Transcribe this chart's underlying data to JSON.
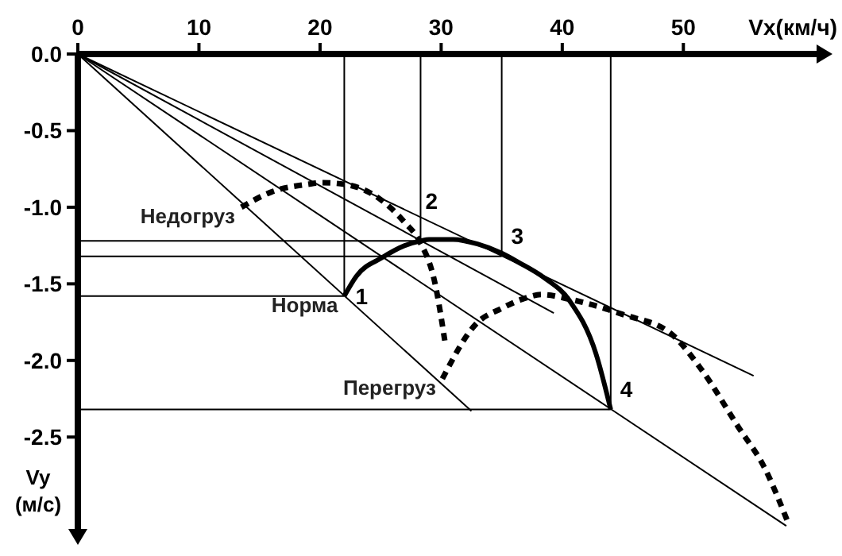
{
  "chart_data": {
    "type": "line",
    "xlabel": "Vx(км/ч)",
    "ylabel": "Vy (м/с)",
    "xlim": [
      0,
      61
    ],
    "ylim": [
      -3.1,
      0
    ],
    "xticks": [
      0,
      10,
      20,
      30,
      40,
      50
    ],
    "yticks": [
      {
        "value": 0,
        "label": "0.0"
      },
      {
        "value": -0.5,
        "label": "-0.5"
      },
      {
        "value": -1,
        "label": "-1.0"
      },
      {
        "value": -1.5,
        "label": "-1.5"
      },
      {
        "value": -2,
        "label": "-2.0"
      },
      {
        "value": -2.5,
        "label": "-2.5"
      }
    ],
    "grid": false,
    "marker": "none",
    "series": [
      {
        "name": "Норма",
        "color": "#000000",
        "line_style": "solid",
        "x": [
          22,
          23,
          25.1,
          27,
          28.3,
          29,
          31,
          33,
          35,
          36.4,
          38.5,
          40.6,
          42.8,
          44
        ],
        "values": [
          -1.58,
          -1.45,
          -1.33,
          -1.25,
          -1.22,
          -1.21,
          -1.21,
          -1.24,
          -1.3,
          -1.36,
          -1.46,
          -1.61,
          -1.96,
          -2.32
        ]
      },
      {
        "name": "Недогруз",
        "color": "#000000",
        "line_style": "dashed",
        "x": [
          13.5,
          16,
          19,
          20.2,
          22,
          25,
          27,
          28.2,
          29.5,
          30.3
        ],
        "values": [
          -1.0,
          -0.9,
          -0.85,
          -0.84,
          -0.85,
          -0.95,
          -1.1,
          -1.22,
          -1.5,
          -1.87
        ]
      },
      {
        "name": "Перегруз",
        "color": "#000000",
        "line_style": "dashed",
        "x": [
          30.1,
          32.9,
          35,
          36.7,
          38.3,
          40.6,
          45,
          48.9,
          51.5,
          54.5,
          56.7,
          58.6
        ],
        "values": [
          -2.12,
          -1.76,
          -1.66,
          -1.6,
          -1.57,
          -1.6,
          -1.7,
          -1.82,
          -2.06,
          -2.43,
          -2.7,
          -3.05
        ]
      },
      {
        "color": "#000000",
        "x": [
          0,
          32.5
        ],
        "values": [
          0,
          -2.33
        ]
      },
      {
        "color": "#000000",
        "x": [
          0,
          39.3
        ],
        "values": [
          0,
          -1.69
        ]
      },
      {
        "color": "#000000",
        "x": [
          0,
          55.8
        ],
        "values": [
          0,
          -2.1
        ]
      },
      {
        "color": "#000000",
        "x": [
          0,
          58.5
        ],
        "values": [
          0,
          -3.08
        ]
      },
      {
        "color": "#000000",
        "x": [
          0,
          22
        ],
        "values": [
          -1.58,
          -1.58
        ]
      },
      {
        "color": "#000000",
        "x": [
          22,
          22
        ],
        "values": [
          0,
          -1.58
        ]
      },
      {
        "color": "#000000",
        "x": [
          0,
          28.3
        ],
        "values": [
          -1.22,
          -1.22
        ]
      },
      {
        "color": "#000000",
        "x": [
          28.3,
          28.3
        ],
        "values": [
          0,
          -1.22
        ]
      },
      {
        "color": "#000000",
        "x": [
          0,
          35
        ],
        "values": [
          -1.32,
          -1.32
        ]
      },
      {
        "color": "#000000",
        "x": [
          35,
          35
        ],
        "values": [
          0,
          -1.32
        ]
      },
      {
        "color": "#000000",
        "x": [
          0,
          44
        ],
        "values": [
          -2.32,
          -2.32
        ]
      },
      {
        "color": "#000000",
        "x": [
          44,
          44
        ],
        "values": [
          0,
          -2.32
        ]
      }
    ],
    "annotations": [
      {
        "text": "1",
        "x": 22,
        "y": -1.58
      },
      {
        "text": "2",
        "x": 28.3,
        "y": -1.22
      },
      {
        "text": "3",
        "x": 35,
        "y": -1.32
      },
      {
        "text": "4",
        "x": 44,
        "y": -2.32
      }
    ]
  }
}
